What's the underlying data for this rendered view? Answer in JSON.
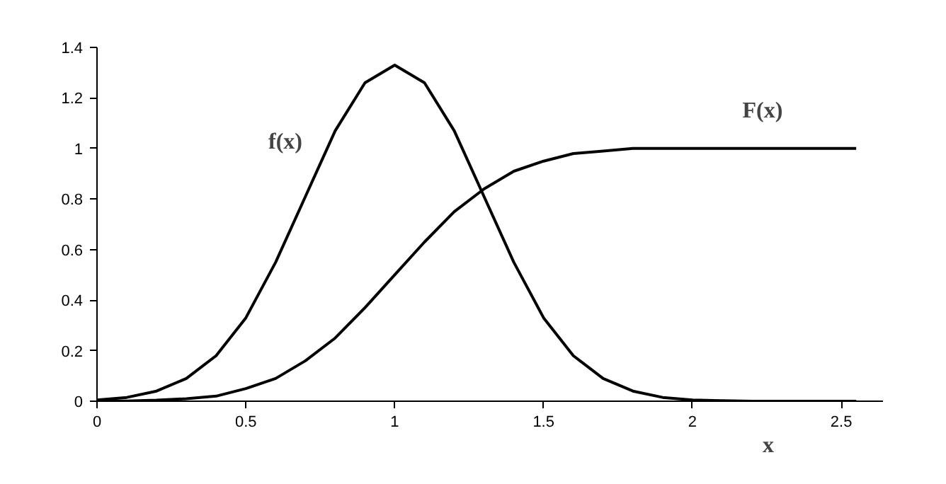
{
  "chart_data": {
    "type": "line",
    "xlabel": "x",
    "x": [
      0,
      0.1,
      0.2,
      0.3,
      0.4,
      0.5,
      0.6,
      0.7,
      0.8,
      0.9,
      1.0,
      1.1,
      1.2,
      1.3,
      1.4,
      1.5,
      1.6,
      1.7,
      1.8,
      1.9,
      2.0,
      2.1,
      2.2,
      2.3,
      2.4,
      2.55
    ],
    "series": [
      {
        "color": "#000000",
        "values": [
          0.005,
          0.015,
          0.04,
          0.09,
          0.18,
          0.33,
          0.55,
          0.81,
          1.07,
          1.26,
          1.33,
          1.26,
          1.07,
          0.81,
          0.55,
          0.33,
          0.18,
          0.09,
          0.04,
          0.015,
          0.005,
          0.002,
          0,
          0,
          0,
          0
        ]
      },
      {
        "color": "#000000",
        "values": [
          0,
          0.001,
          0.004,
          0.01,
          0.02,
          0.05,
          0.09,
          0.16,
          0.25,
          0.37,
          0.5,
          0.63,
          0.75,
          0.84,
          0.91,
          0.95,
          0.98,
          0.99,
          1.0,
          1.0,
          1.0,
          1.0,
          1.0,
          1.0,
          1.0,
          1.0
        ]
      }
    ],
    "annotations": [
      "f(x)",
      "F(x)"
    ],
    "xlim": [
      0,
      2.64
    ],
    "ylim": [
      0,
      1.4
    ],
    "xticks": [
      0,
      0.5,
      1,
      1.5,
      2,
      2.5
    ],
    "yticks": [
      0,
      0.2,
      0.4,
      0.6,
      0.8,
      1,
      1.2,
      1.4
    ],
    "grid": false,
    "marker": "none",
    "line_style": "solid"
  }
}
